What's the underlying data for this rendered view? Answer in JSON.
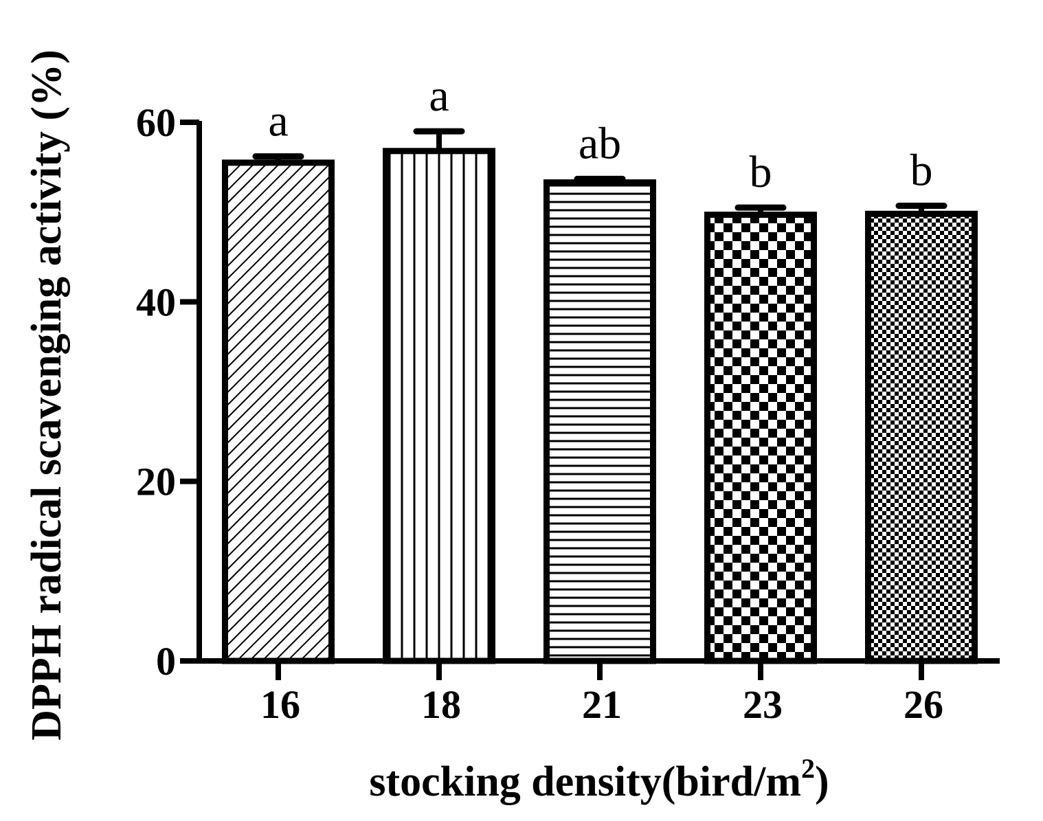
{
  "chart_data": {
    "type": "bar",
    "categories": [
      "16",
      "18",
      "21",
      "23",
      "26"
    ],
    "values": [
      55.5,
      56.8,
      53.3,
      49.7,
      49.8
    ],
    "errors": [
      0.7,
      2.2,
      0.4,
      0.8,
      0.9
    ],
    "significance_labels": [
      "a",
      "a",
      "ab",
      "b",
      "b"
    ],
    "patterns": [
      "diagonal-hatch",
      "vertical-lines",
      "horizontal-lines",
      "large-checker",
      "small-checker"
    ],
    "ylabel": "DPPH radical scavenging activity (%)",
    "xlabel_main": "stocking density(bird/m",
    "xlabel_sup": "2",
    "xlabel_end": ")",
    "ylim": [
      0,
      60
    ],
    "yticks": [
      0,
      20,
      40,
      60
    ],
    "grid": false,
    "colors": {
      "bar_outline": "#000000",
      "bar_fill": "#ffffff",
      "axis": "#000000"
    }
  }
}
